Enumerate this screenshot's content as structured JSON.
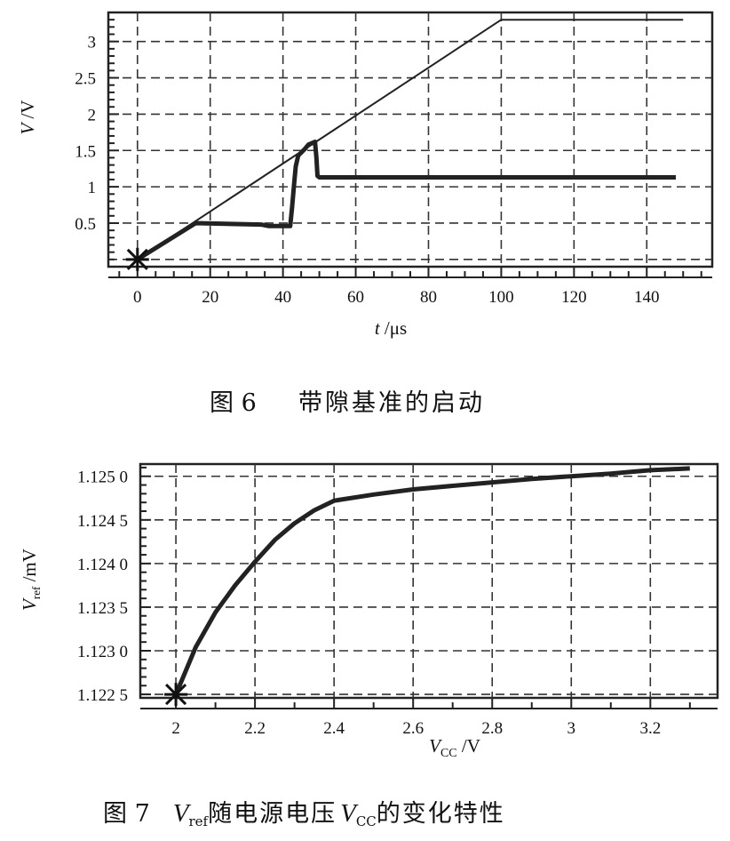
{
  "figure6": {
    "caption_num": "图 6",
    "caption_text": "带隙基准的启动",
    "chart_data": {
      "type": "line",
      "xlabel_var": "t",
      "xlabel_unit": " /μs",
      "ylabel_var": "V",
      "ylabel_unit": " /V",
      "xlim": [
        -8,
        158
      ],
      "ylim": [
        -0.1,
        3.4
      ],
      "xticks": [
        0,
        20,
        40,
        60,
        80,
        100,
        120,
        140
      ],
      "xtick_labels": [
        "0",
        "20",
        "40",
        "60",
        "80",
        "100",
        "120",
        "140"
      ],
      "yticks": [
        0.5,
        1,
        1.5,
        2,
        2.5,
        3
      ],
      "ytick_labels": [
        "0.5",
        "1",
        "1.5",
        "2",
        "2.5",
        "3"
      ],
      "xgrid": [
        0,
        20,
        40,
        60,
        80,
        100,
        120,
        140
      ],
      "ygrid": [
        0,
        0.5,
        1,
        1.5,
        2,
        2.5,
        3
      ],
      "grid": true,
      "start_marker": {
        "x": 0,
        "y": 0
      },
      "series": [
        {
          "x": [
            0,
            100,
            150
          ],
          "y": [
            0,
            3.3,
            3.3
          ],
          "width": 2
        },
        {
          "x": [
            0,
            16,
            34,
            36,
            42,
            42.5,
            43,
            43.5,
            44.2,
            46,
            47,
            48.8,
            49.2,
            49.5,
            50,
            148
          ],
          "y": [
            0,
            0.5,
            0.48,
            0.46,
            0.46,
            0.72,
            1.0,
            1.28,
            1.43,
            1.52,
            1.58,
            1.62,
            1.4,
            1.15,
            1.13,
            1.13
          ],
          "width": 5
        }
      ]
    }
  },
  "figure7": {
    "caption_num": "图 7",
    "caption_pre": "V",
    "caption_pre_sub": "ref",
    "caption_mid": "随电源电压",
    "caption_post": "V",
    "caption_post_sub": "CC",
    "caption_end": "的变化特性",
    "chart_data": {
      "type": "line",
      "xlabel_var": "V",
      "xlabel_sub": "CC",
      "xlabel_unit": " /V",
      "ylabel_var": "V",
      "ylabel_sub": "ref",
      "ylabel_unit": " /mV",
      "xlim": [
        1.91,
        3.37
      ],
      "ylim": [
        1.12246,
        1.12514
      ],
      "xticks": [
        2,
        2.2,
        2.4,
        2.6,
        2.8,
        3,
        3.2
      ],
      "xtick_labels": [
        "2",
        "2.2",
        "2.4",
        "2.6",
        "2.8",
        "3",
        "3.2"
      ],
      "yticks": [
        1.1225,
        1.123,
        1.1235,
        1.124,
        1.1245,
        1.125
      ],
      "ytick_labels": [
        "1.122 5",
        "1.123 0",
        "1.123 5",
        "1.124 0",
        "1.124 5",
        "1.125 0"
      ],
      "xgrid": [
        2,
        2.2,
        2.4,
        2.6,
        2.8,
        3,
        3.2
      ],
      "ygrid": [
        1.1225,
        1.123,
        1.1235,
        1.124,
        1.1245,
        1.125
      ],
      "grid": true,
      "start_marker": {
        "x": 2,
        "y": 1.1225
      },
      "series": [
        {
          "x": [
            2,
            2.05,
            2.1,
            2.15,
            2.2,
            2.25,
            2.3,
            2.35,
            2.4,
            2.5,
            2.6,
            2.7,
            2.8,
            2.9,
            3.0,
            3.1,
            3.2,
            3.3
          ],
          "y": [
            1.1225,
            1.12304,
            1.12344,
            1.12375,
            1.12402,
            1.12427,
            1.12446,
            1.12461,
            1.12472,
            1.12479,
            1.12485,
            1.12489,
            1.12493,
            1.12497,
            1.125,
            1.12503,
            1.12507,
            1.12509
          ],
          "width": 5
        }
      ]
    }
  }
}
